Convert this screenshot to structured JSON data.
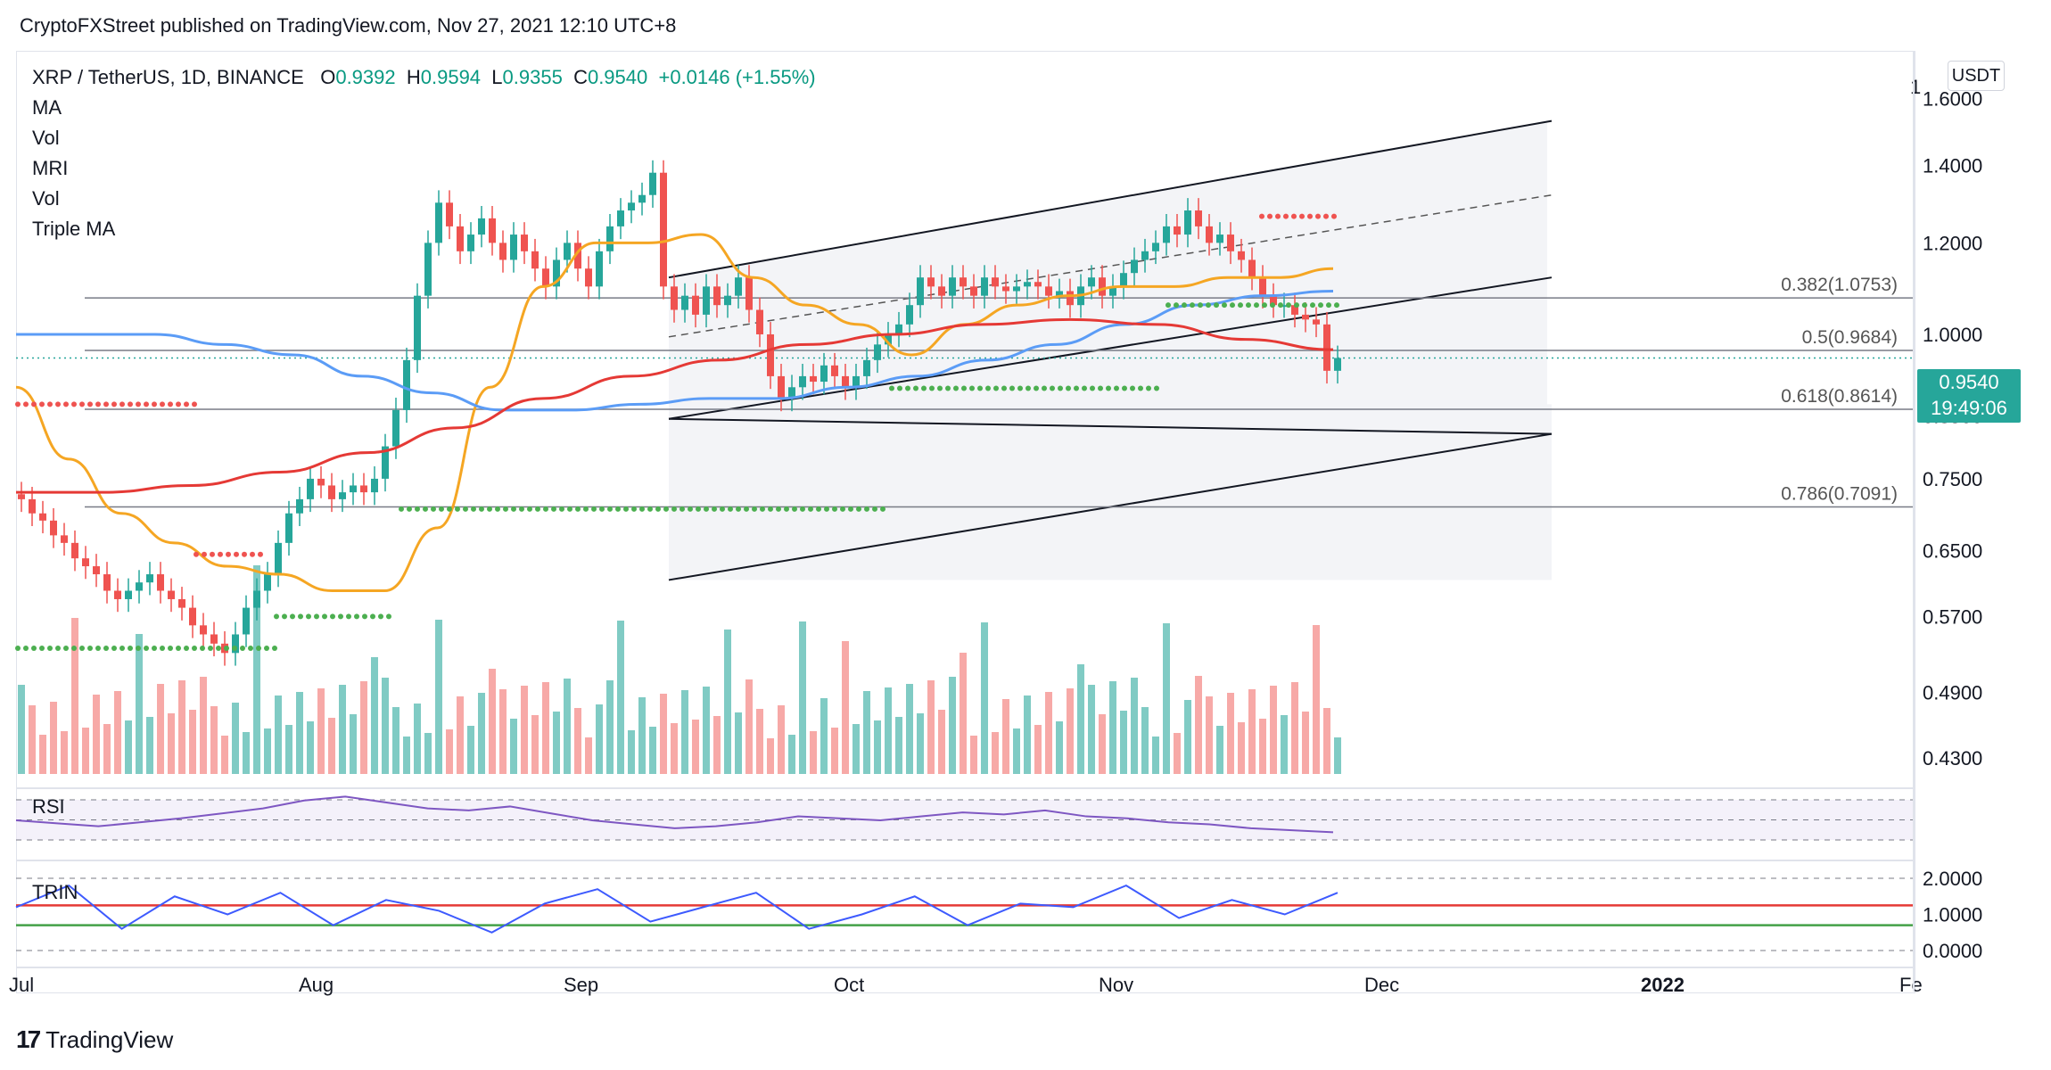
{
  "header": {
    "publisher": "CryptoFXStreet published on TradingView.com, Nov 27, 2021 12:10 UTC+8"
  },
  "legend": {
    "symbol": "XRP / TetherUS, 1D, BINANCE",
    "open_label": "O",
    "open": "0.9392",
    "high_label": "H",
    "high": "0.9594",
    "low_label": "L",
    "low": "0.9355",
    "close_label": "C",
    "close": "0.9540",
    "change": "+0.0146 (+1.55%)",
    "indicators": [
      "MA",
      "Vol",
      "MRI",
      "Vol",
      "Triple MA"
    ]
  },
  "currency_badge": "USDT",
  "last_price": {
    "price": "0.9540",
    "countdown": "19:49:06"
  },
  "panes": {
    "rsi_label": "RSI",
    "trin_label": "TRIN"
  },
  "brand": {
    "logo": "17",
    "name": "TradingView"
  },
  "colors": {
    "up": "#26a69a",
    "down": "#ef5350",
    "ma_blue": "#5b9cf6",
    "ma_orange": "#f5a623",
    "ma_red": "#e53935",
    "rsi": "#7e57c2",
    "trin": "#3d5afe"
  },
  "chart_data": {
    "type": "candlestick",
    "price_axis": {
      "ticks": [
        "1.6000",
        "1.4000",
        "1.2000",
        "1.0000",
        "0.8500",
        "0.7500",
        "0.6500",
        "0.5700",
        "0.4900",
        "0.4300"
      ],
      "scale": "log",
      "top_label": "1"
    },
    "time_axis": {
      "ticks": [
        "Jul",
        "Aug",
        "Sep",
        "Oct",
        "Nov",
        "Dec",
        "2022",
        "Fe"
      ]
    },
    "fib_levels": [
      {
        "ratio": "0.382",
        "price": 1.0753,
        "label": "0.382(1.0753)"
      },
      {
        "ratio": "0.5",
        "price": 0.9684,
        "label": "0.5(0.9684)"
      },
      {
        "ratio": "0.618",
        "price": 0.8614,
        "label": "0.618(0.8614)"
      },
      {
        "ratio": "0.786",
        "price": 0.7091,
        "label": "0.786(0.7091)"
      }
    ],
    "close_series": [
      0.72,
      0.7,
      0.69,
      0.67,
      0.66,
      0.64,
      0.63,
      0.62,
      0.6,
      0.59,
      0.6,
      0.61,
      0.62,
      0.6,
      0.59,
      0.58,
      0.56,
      0.55,
      0.54,
      0.53,
      0.55,
      0.58,
      0.6,
      0.62,
      0.66,
      0.7,
      0.72,
      0.75,
      0.74,
      0.72,
      0.73,
      0.74,
      0.73,
      0.75,
      0.8,
      0.86,
      0.95,
      1.08,
      1.2,
      1.3,
      1.24,
      1.18,
      1.22,
      1.26,
      1.2,
      1.16,
      1.22,
      1.18,
      1.14,
      1.1,
      1.16,
      1.2,
      1.14,
      1.1,
      1.18,
      1.24,
      1.28,
      1.3,
      1.32,
      1.38,
      1.1,
      1.05,
      1.08,
      1.04,
      1.1,
      1.06,
      1.08,
      1.12,
      1.05,
      1.0,
      0.92,
      0.88,
      0.9,
      0.92,
      0.91,
      0.94,
      0.92,
      0.9,
      0.92,
      0.95,
      0.98,
      1.0,
      1.02,
      1.06,
      1.12,
      1.1,
      1.08,
      1.12,
      1.1,
      1.08,
      1.12,
      1.1,
      1.09,
      1.1,
      1.11,
      1.1,
      1.08,
      1.09,
      1.06,
      1.1,
      1.12,
      1.08,
      1.1,
      1.13,
      1.16,
      1.18,
      1.2,
      1.24,
      1.22,
      1.28,
      1.24,
      1.2,
      1.22,
      1.18,
      1.16,
      1.12,
      1.08,
      1.06,
      1.06,
      1.04,
      1.03,
      1.02,
      0.93,
      0.954
    ],
    "ma_series": [
      {
        "name": "",
        "color": "#f5a623",
        "points": [
          0.9,
          0.78,
          0.7,
          0.66,
          0.63,
          0.62,
          0.6,
          0.6,
          0.68,
          0.9,
          1.1,
          1.2,
          1.2,
          1.22,
          1.12,
          1.06,
          1.02,
          0.96,
          1.02,
          1.06,
          1.08,
          1.1,
          1.1,
          1.12,
          1.12,
          1.14
        ]
      },
      {
        "name": "",
        "color": "#5b9cf6",
        "points": [
          1.0,
          1.0,
          1.0,
          0.98,
          0.96,
          0.92,
          0.89,
          0.86,
          0.86,
          0.87,
          0.88,
          0.88,
          0.9,
          0.92,
          0.95,
          0.98,
          1.02,
          1.06,
          1.08,
          1.09
        ]
      },
      {
        "name": "",
        "color": "#e53935",
        "points": [
          0.73,
          0.73,
          0.74,
          0.76,
          0.79,
          0.83,
          0.88,
          0.92,
          0.95,
          0.98,
          1.0,
          1.02,
          1.03,
          1.02,
          0.99,
          0.97
        ]
      }
    ],
    "rsi_series": [
      48,
      45,
      42,
      46,
      50,
      55,
      60,
      68,
      72,
      66,
      60,
      58,
      62,
      55,
      48,
      44,
      40,
      42,
      46,
      52,
      50,
      48,
      52,
      56,
      54,
      58,
      52,
      50,
      46,
      44,
      40,
      38,
      36
    ],
    "trin_series": [
      1.2,
      1.8,
      0.6,
      1.5,
      1.0,
      1.6,
      0.7,
      1.4,
      1.1,
      0.5,
      1.3,
      1.7,
      0.8,
      1.2,
      1.6,
      0.6,
      1.0,
      1.5,
      0.7,
      1.3,
      1.2,
      1.8,
      0.9,
      1.4,
      1.0,
      1.6
    ],
    "trin_axis": {
      "ticks": [
        "2.0000",
        "1.0000",
        "0.0000"
      ]
    }
  }
}
